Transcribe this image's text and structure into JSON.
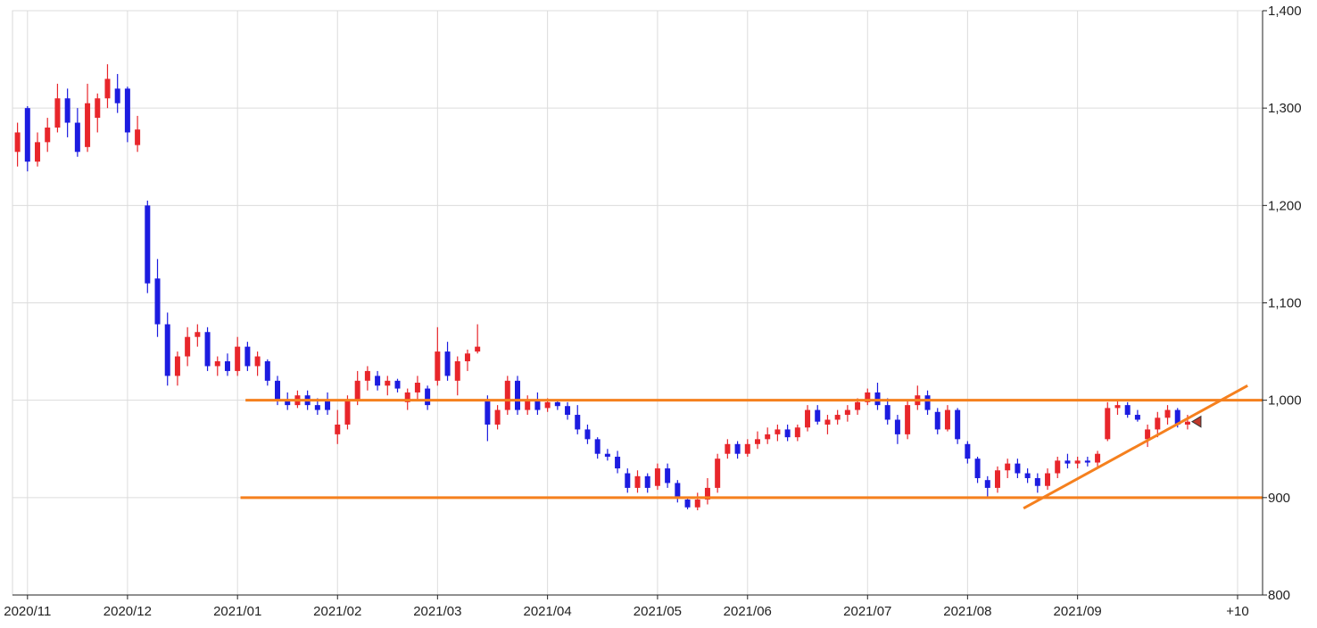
{
  "chart_data": {
    "type": "candlestick",
    "categories": [
      null,
      "2020/11",
      null,
      null,
      null,
      null,
      null,
      null,
      null,
      null,
      null,
      "2020/12",
      null,
      null,
      null,
      null,
      null,
      null,
      null,
      null,
      null,
      null,
      "2021/01",
      null,
      null,
      null,
      null,
      null,
      null,
      null,
      null,
      null,
      "2021/02",
      null,
      null,
      null,
      null,
      null,
      null,
      null,
      null,
      null,
      "2021/03",
      null,
      null,
      null,
      null,
      null,
      null,
      null,
      null,
      null,
      null,
      "2021/04",
      null,
      null,
      null,
      null,
      null,
      null,
      null,
      null,
      null,
      null,
      "2021/05",
      null,
      null,
      null,
      null,
      null,
      null,
      null,
      null,
      "2021/06",
      null,
      null,
      null,
      null,
      null,
      null,
      null,
      null,
      null,
      null,
      null,
      "2021/07",
      null,
      null,
      null,
      null,
      null,
      null,
      null,
      null,
      null,
      "2021/08",
      null,
      null,
      null,
      null,
      null,
      null,
      null,
      null,
      null,
      null,
      "2021/09",
      null,
      null,
      null,
      null,
      null,
      null,
      null,
      null,
      null,
      null,
      null,
      null,
      null,
      null,
      null,
      "+10",
      null,
      null
    ],
    "open": [
      1255,
      1300,
      1245,
      1265,
      1280,
      1310,
      1285,
      1260,
      1290,
      1310,
      1320,
      1320,
      1262,
      1200,
      1125,
      1078,
      1025,
      1045,
      1065,
      1070,
      1035,
      1040,
      1030,
      1055,
      1035,
      1040,
      1020,
      1000,
      995,
      1005,
      995,
      1000,
      965,
      975,
      1000,
      1020,
      1025,
      1015,
      1020,
      998,
      1008,
      1012,
      1020,
      1050,
      1020,
      1040,
      1050,
      1000,
      975,
      990,
      1020,
      990,
      1000,
      992,
      998,
      994,
      985,
      970,
      960,
      945,
      942,
      925,
      910,
      922,
      912,
      930,
      915,
      898,
      890,
      898,
      910,
      945,
      955,
      945,
      955,
      960,
      965,
      970,
      962,
      972,
      990,
      975,
      980,
      985,
      990,
      998,
      1008,
      995,
      980,
      965,
      995,
      1005,
      988,
      970,
      990,
      955,
      940,
      918,
      910,
      928,
      935,
      925,
      920,
      912,
      925,
      938,
      935,
      938,
      936,
      960,
      992,
      995,
      985,
      960,
      970,
      982,
      990,
      975,
      null,
      null,
      null,
      null,
      null,
      null,
      null
    ],
    "high": [
      1285,
      1302,
      1275,
      1290,
      1325,
      1320,
      1300,
      1325,
      1315,
      1345,
      1335,
      1322,
      1292,
      1205,
      1145,
      1090,
      1050,
      1075,
      1078,
      1075,
      1045,
      1048,
      1065,
      1060,
      1050,
      1042,
      1025,
      1008,
      1010,
      1010,
      1002,
      1008,
      990,
      1005,
      1030,
      1035,
      1030,
      1025,
      1022,
      1012,
      1025,
      1015,
      1075,
      1060,
      1045,
      1052,
      1078,
      1005,
      995,
      1025,
      1025,
      1005,
      1008,
      1002,
      1000,
      998,
      995,
      975,
      962,
      950,
      948,
      930,
      928,
      925,
      935,
      935,
      918,
      900,
      905,
      920,
      945,
      960,
      958,
      960,
      968,
      972,
      975,
      975,
      975,
      995,
      995,
      985,
      990,
      995,
      1002,
      1012,
      1018,
      1002,
      985,
      1000,
      1015,
      1010,
      992,
      995,
      992,
      958,
      942,
      922,
      932,
      940,
      940,
      930,
      925,
      930,
      942,
      945,
      942,
      942,
      948,
      998,
      1000,
      998,
      990,
      975,
      988,
      995,
      992,
      985,
      null,
      null,
      null,
      null,
      null,
      null,
      null
    ],
    "low": [
      1240,
      1235,
      1240,
      1255,
      1275,
      1270,
      1250,
      1255,
      1275,
      1300,
      1295,
      1265,
      1255,
      1110,
      1065,
      1015,
      1015,
      1035,
      1055,
      1030,
      1025,
      1025,
      1025,
      1030,
      1025,
      1015,
      995,
      990,
      992,
      990,
      985,
      985,
      955,
      970,
      995,
      1010,
      1010,
      1005,
      1008,
      990,
      1000,
      990,
      1015,
      1020,
      1005,
      1030,
      1048,
      958,
      970,
      985,
      985,
      985,
      985,
      988,
      990,
      980,
      965,
      955,
      940,
      938,
      925,
      905,
      905,
      905,
      908,
      910,
      895,
      888,
      887,
      893,
      905,
      940,
      940,
      942,
      950,
      955,
      958,
      958,
      958,
      968,
      975,
      965,
      975,
      978,
      985,
      995,
      990,
      975,
      955,
      960,
      990,
      985,
      965,
      968,
      955,
      935,
      915,
      900,
      905,
      920,
      920,
      915,
      905,
      908,
      920,
      930,
      930,
      932,
      932,
      958,
      985,
      982,
      978,
      952,
      962,
      975,
      972,
      970,
      null,
      null,
      null,
      null,
      null,
      null,
      null
    ],
    "close": [
      1275,
      1245,
      1265,
      1280,
      1310,
      1285,
      1255,
      1305,
      1310,
      1330,
      1305,
      1275,
      1278,
      1120,
      1078,
      1025,
      1045,
      1065,
      1070,
      1035,
      1040,
      1030,
      1055,
      1035,
      1045,
      1020,
      1000,
      995,
      1005,
      995,
      990,
      990,
      975,
      1000,
      1020,
      1030,
      1015,
      1020,
      1012,
      1008,
      1018,
      995,
      1050,
      1025,
      1040,
      1048,
      1055,
      975,
      990,
      1020,
      990,
      1000,
      990,
      998,
      994,
      985,
      970,
      960,
      945,
      942,
      930,
      910,
      922,
      910,
      930,
      915,
      900,
      890,
      898,
      910,
      940,
      955,
      945,
      955,
      960,
      965,
      970,
      962,
      972,
      990,
      978,
      980,
      985,
      990,
      998,
      1008,
      995,
      980,
      965,
      995,
      1005,
      990,
      970,
      990,
      960,
      940,
      920,
      910,
      928,
      935,
      925,
      920,
      912,
      925,
      938,
      935,
      938,
      936,
      945,
      992,
      995,
      985,
      980,
      970,
      982,
      990,
      975,
      978,
      null,
      null,
      null,
      null,
      null,
      null,
      null
    ],
    "up_color": "#e8262b",
    "down_color": "#1c1ce0",
    "ylim": [
      800,
      1400
    ],
    "yticks": [
      800,
      900,
      {
        "value": 1000,
        "label": "1,000"
      },
      {
        "value": 1100,
        "label": "1,100"
      },
      {
        "value": 1200,
        "label": "1,200"
      },
      {
        "value": 1300,
        "label": "1,300"
      },
      {
        "value": 1400,
        "label": "1,400"
      }
    ],
    "grid": true,
    "lines": [
      {
        "x": [
          22.8,
          124.5
        ],
        "y": [
          1000,
          1000
        ],
        "color": "#f5801e"
      },
      {
        "x": [
          22.3,
          124.5
        ],
        "y": [
          900,
          900
        ],
        "color": "#f5801e"
      },
      {
        "x": [
          100.6,
          123.0
        ],
        "y": [
          889,
          1015
        ],
        "color": "#f5801e"
      }
    ]
  }
}
